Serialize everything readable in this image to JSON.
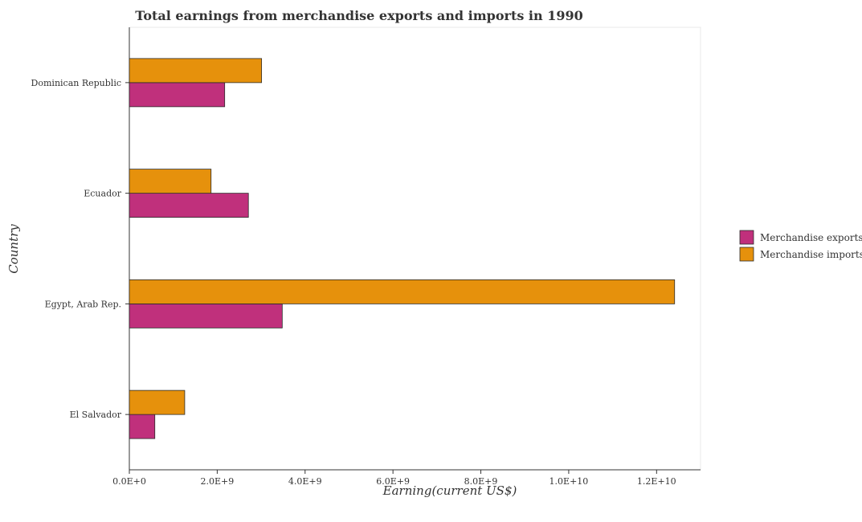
{
  "chart_data": {
    "type": "bar",
    "orientation": "horizontal",
    "title": "Total earnings from merchandise exports and imports in 1990",
    "xlabel": "Earning(current US$)",
    "ylabel": "Country",
    "categories": [
      "Dominican Republic",
      "Ecuador",
      "Egypt, Arab Rep.",
      "El Salvador"
    ],
    "series": [
      {
        "name": "Merchandise exports",
        "color": "#c0307c",
        "values": [
          2170000000,
          2710000000,
          3480000000,
          580000000
        ]
      },
      {
        "name": "Merchandise imports",
        "color": "#e6910c",
        "values": [
          3010000000,
          1860000000,
          12410000000,
          1260000000
        ]
      }
    ],
    "xlim": [
      0,
      13000000000
    ],
    "xticks": [
      0,
      2000000000,
      4000000000,
      6000000000,
      8000000000,
      10000000000,
      12000000000
    ],
    "xtick_labels": [
      "0.0E+0",
      "2.0E+9",
      "4.0E+9",
      "6.0E+9",
      "8.0E+9",
      "1.0E+10",
      "1.2E+10"
    ],
    "legend_position": "right",
    "grid": false
  }
}
